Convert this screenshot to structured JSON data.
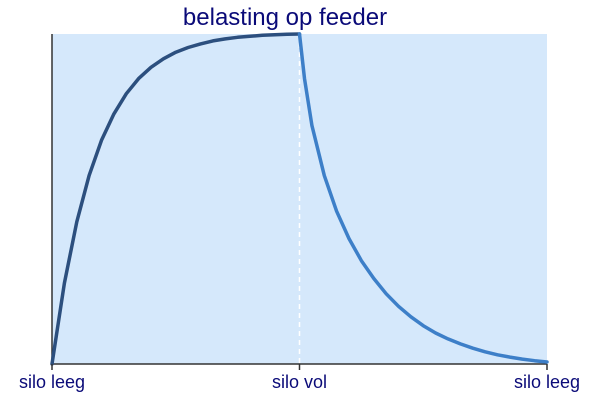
{
  "chart_data": {
    "type": "line",
    "title": "belasting op feeder",
    "xlabel": "",
    "ylabel": "",
    "x_ticks": [
      "silo leeg",
      "silo vol",
      "silo leeg"
    ],
    "xlim": [
      0,
      2
    ],
    "ylim": [
      0,
      1
    ],
    "grid": false,
    "divider_at": 1,
    "colors": {
      "background": "#d5e8fb",
      "axis": "#333333",
      "divider": "#ffffff",
      "text": "#0a0a78"
    },
    "series": [
      {
        "color": "#2c4f7e",
        "x": [
          0,
          0.05,
          0.1,
          0.15,
          0.2,
          0.25,
          0.3,
          0.35,
          0.4,
          0.45,
          0.5,
          0.55,
          0.6,
          0.65,
          0.7,
          0.75,
          0.8,
          0.85,
          0.9,
          0.95,
          1.0
        ],
        "y": [
          0,
          0.245,
          0.431,
          0.571,
          0.678,
          0.758,
          0.819,
          0.865,
          0.899,
          0.925,
          0.945,
          0.959,
          0.97,
          0.979,
          0.985,
          0.99,
          0.993,
          0.996,
          0.998,
          0.999,
          1.0
        ]
      },
      {
        "color": "#3d7fc8",
        "x": [
          1.0,
          1.02,
          1.05,
          1.1,
          1.15,
          1.2,
          1.25,
          1.3,
          1.35,
          1.4,
          1.45,
          1.5,
          1.55,
          1.6,
          1.65,
          1.7,
          1.75,
          1.8,
          1.85,
          1.9,
          1.95,
          2.0
        ],
        "y": [
          1.0,
          0.865,
          0.723,
          0.571,
          0.463,
          0.38,
          0.313,
          0.259,
          0.213,
          0.175,
          0.143,
          0.116,
          0.094,
          0.076,
          0.061,
          0.048,
          0.037,
          0.028,
          0.021,
          0.015,
          0.01,
          0.006
        ]
      }
    ]
  }
}
